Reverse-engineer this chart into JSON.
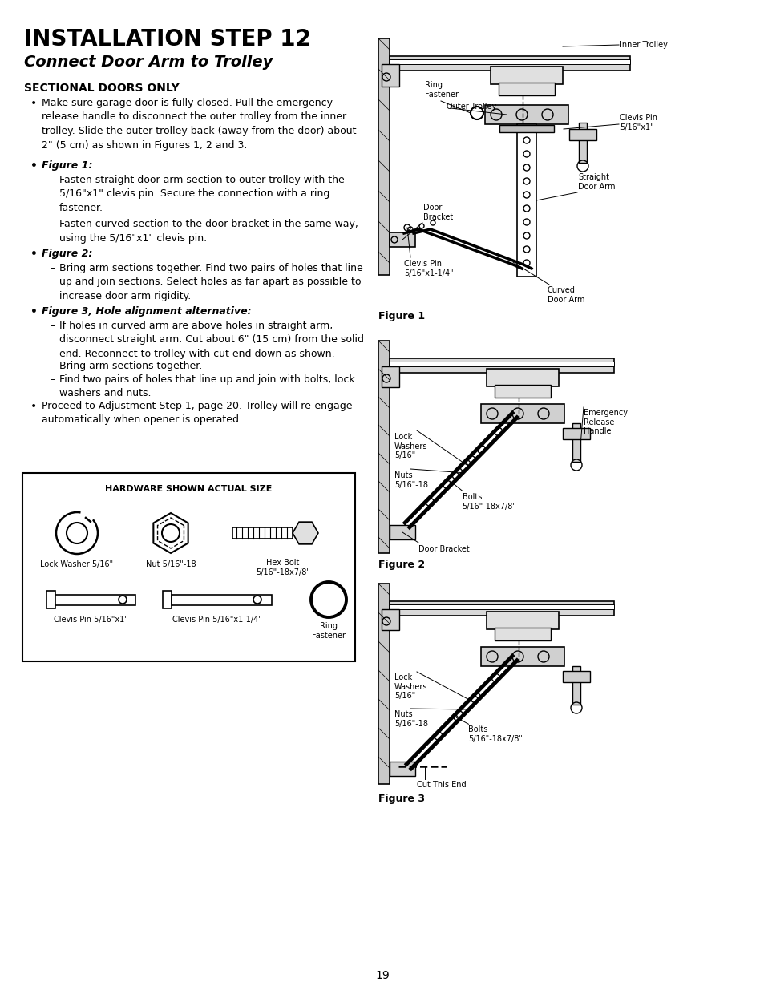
{
  "title": "INSTALLATION STEP 12",
  "subtitle": "Connect Door Arm to Trolley",
  "bg_color": "#ffffff",
  "text_color": "#000000",
  "page_number": "19",
  "section_header": "SECTIONAL DOORS ONLY",
  "hardware_title": "HARDWARE SHOWN ACTUAL SIZE",
  "hardware_items": [
    {
      "name": "Lock Washer 5/16\"",
      "type": "lock_washer"
    },
    {
      "name": "Nut 5/16\"-18",
      "type": "nut"
    },
    {
      "name": "Hex Bolt\n5/16\"-18x7/8\"",
      "type": "hex_bolt"
    },
    {
      "name": "Clevis Pin 5/16\"x1\"",
      "type": "clevis_pin_short"
    },
    {
      "name": "Clevis Pin 5/16\"x1-1/4\"",
      "type": "clevis_pin_long"
    },
    {
      "name": "Ring\nFastener",
      "type": "ring"
    }
  ],
  "figure1_caption": "Figure 1",
  "figure2_caption": "Figure 2",
  "figure3_caption": "Figure 3"
}
